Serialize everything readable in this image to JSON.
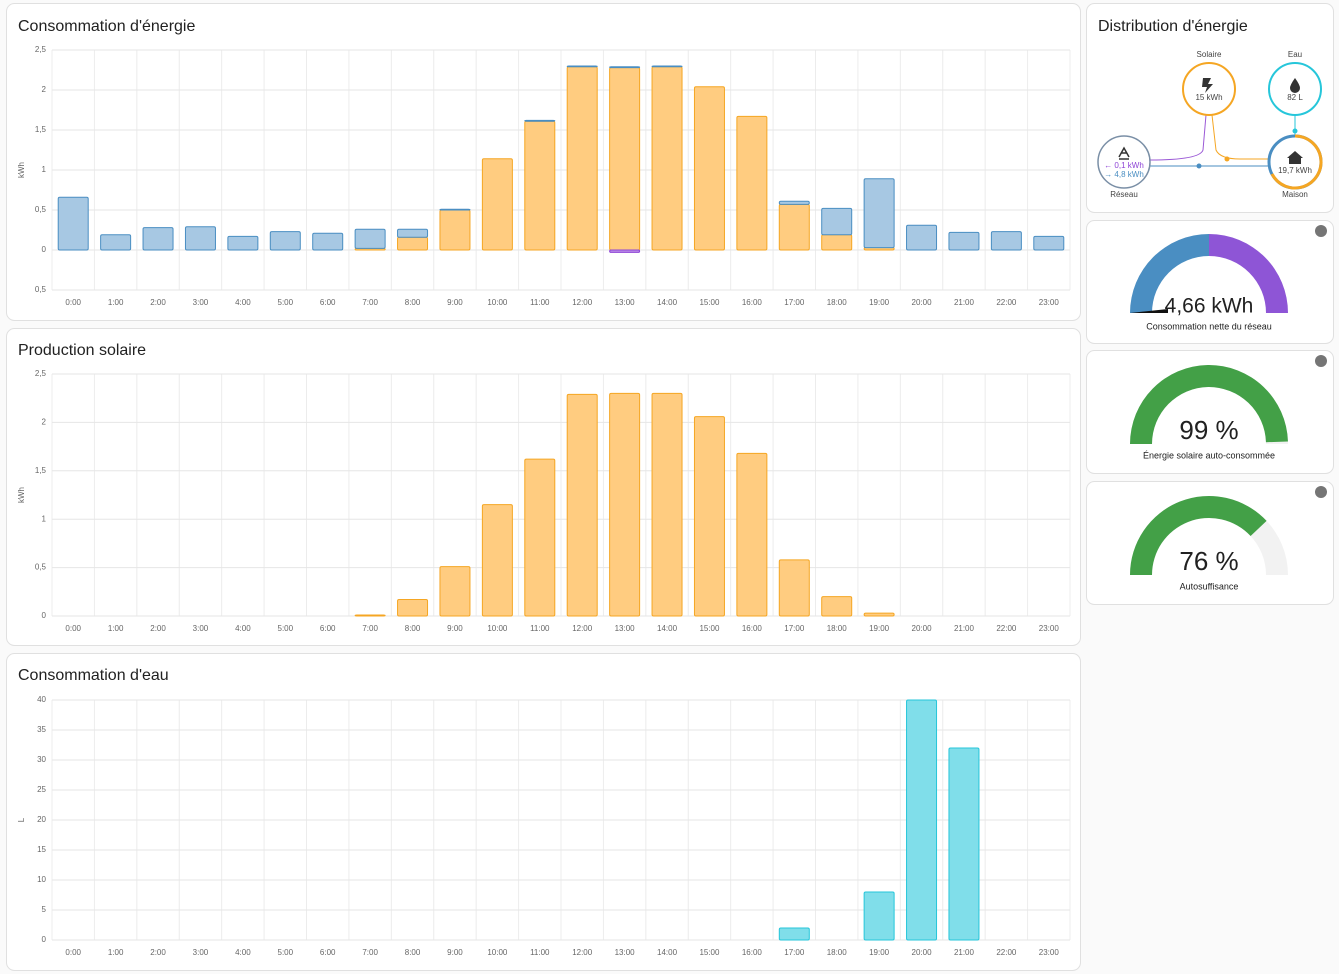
{
  "chart_data": [
    {
      "type": "bar",
      "title": "Consommation d'énergie",
      "y_label": "kWh",
      "stacked": true,
      "categories": [
        "0:00",
        "1:00",
        "2:00",
        "3:00",
        "4:00",
        "5:00",
        "6:00",
        "7:00",
        "8:00",
        "9:00",
        "10:00",
        "11:00",
        "12:00",
        "13:00",
        "14:00",
        "15:00",
        "16:00",
        "17:00",
        "18:00",
        "19:00",
        "20:00",
        "21:00",
        "22:00",
        "23:00"
      ],
      "series": [
        {
          "color": "#f5a623",
          "fill": "#ffcc80",
          "values": [
            0,
            0,
            0,
            0,
            0,
            0,
            0,
            0.02,
            0.16,
            0.5,
            1.14,
            1.61,
            2.29,
            2.28,
            2.29,
            2.04,
            1.67,
            0.57,
            0.19,
            0.03,
            0,
            0,
            0,
            0
          ]
        },
        {
          "color": "#4a8ec2",
          "fill": "#a7c8e3",
          "values": [
            0.66,
            0.19,
            0.28,
            0.29,
            0.17,
            0.23,
            0.21,
            0.24,
            0.1,
            0.01,
            0,
            0.01,
            0.01,
            0.01,
            0.01,
            0,
            0,
            0.04,
            0.33,
            0.86,
            0.31,
            0.22,
            0.23,
            0.17
          ]
        },
        {
          "color": "#8e44d6",
          "fill": "#b98ae6",
          "values": [
            0,
            0,
            0,
            0,
            0,
            0,
            0,
            0,
            0,
            0,
            0,
            0,
            0,
            -0.03,
            0,
            0,
            0,
            0,
            0,
            0,
            0,
            0,
            0,
            0
          ]
        }
      ],
      "ylim": [
        -0.5,
        2.5
      ],
      "yticks": [
        {
          "value": -0.5,
          "label": "0,5"
        },
        0,
        {
          "value": 0.5,
          "label": "0,5"
        },
        1,
        {
          "value": 1.5,
          "label": "1,5"
        },
        2,
        {
          "value": 2.5,
          "label": "2,5"
        }
      ],
      "grid": true
    },
    {
      "type": "bar",
      "title": "Production solaire",
      "y_label": "kWh",
      "stacked": true,
      "categories": [
        "0:00",
        "1:00",
        "2:00",
        "3:00",
        "4:00",
        "5:00",
        "6:00",
        "7:00",
        "8:00",
        "9:00",
        "10:00",
        "11:00",
        "12:00",
        "13:00",
        "14:00",
        "15:00",
        "16:00",
        "17:00",
        "18:00",
        "19:00",
        "20:00",
        "21:00",
        "22:00",
        "23:00"
      ],
      "series": [
        {
          "color": "#f5a623",
          "fill": "#ffcc80",
          "values": [
            0,
            0,
            0,
            0,
            0,
            0,
            0,
            0.01,
            0.17,
            0.51,
            1.15,
            1.62,
            2.29,
            2.3,
            2.3,
            2.06,
            1.68,
            0.58,
            0.2,
            0.03,
            0,
            0,
            0,
            0
          ]
        }
      ],
      "ylim": [
        0,
        2.5
      ],
      "yticks": [
        0,
        {
          "value": 0.5,
          "label": "0,5"
        },
        1,
        {
          "value": 1.5,
          "label": "1,5"
        },
        2,
        {
          "value": 2.5,
          "label": "2,5"
        }
      ],
      "grid": true
    },
    {
      "type": "bar",
      "title": "Consommation d'eau",
      "y_label": "L",
      "stacked": true,
      "categories": [
        "0:00",
        "1:00",
        "2:00",
        "3:00",
        "4:00",
        "5:00",
        "6:00",
        "7:00",
        "8:00",
        "9:00",
        "10:00",
        "11:00",
        "12:00",
        "13:00",
        "14:00",
        "15:00",
        "16:00",
        "17:00",
        "18:00",
        "19:00",
        "20:00",
        "21:00",
        "22:00",
        "23:00"
      ],
      "series": [
        {
          "color": "#26c6da",
          "fill": "#80deea",
          "values": [
            0,
            0,
            0,
            0,
            0,
            0,
            0,
            0,
            0,
            0,
            0,
            0,
            0,
            0,
            0,
            0,
            0,
            2,
            0,
            8,
            40,
            32,
            0,
            0
          ]
        }
      ],
      "ylim": [
        0,
        40
      ],
      "yticks": [
        0,
        5,
        10,
        15,
        20,
        25,
        30,
        35,
        40
      ],
      "grid": true
    }
  ],
  "distribution": {
    "title": "Distribution d'énergie",
    "solar": {
      "label": "Solaire",
      "value": "15 kWh"
    },
    "water": {
      "label": "Eau",
      "value": "82 L"
    },
    "grid": {
      "label": "Réseau",
      "in": "← 0,1 kWh",
      "out": "→ 4,8 kWh"
    },
    "home": {
      "label": "Maison",
      "value": "19,7 kWh"
    }
  },
  "gauges": [
    {
      "value": "4,66 kWh",
      "label": "Consommation nette du réseau"
    },
    {
      "value": "99 %",
      "label": "Énergie solaire auto-consommée"
    },
    {
      "value": "76 %",
      "label": "Autosuffisance"
    }
  ]
}
